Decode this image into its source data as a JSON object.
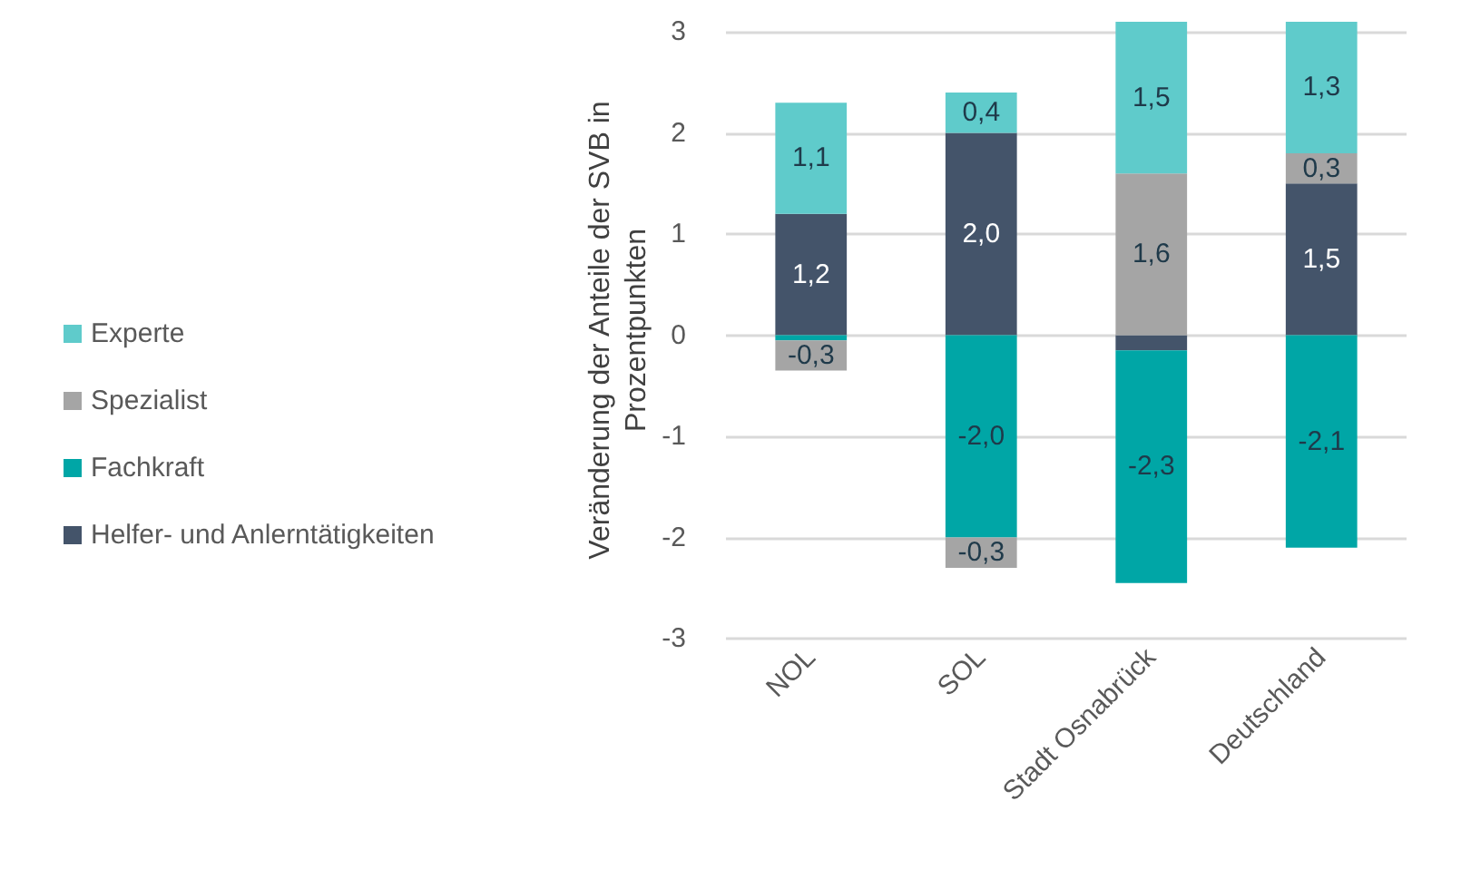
{
  "chart_data": {
    "type": "bar",
    "stacked": true,
    "ylabel": "Veränderung der Anteile der SVB in Prozentpunkten",
    "categories": [
      "NOL",
      "SOL",
      "Stadt Osnabrück",
      "Deutschland"
    ],
    "series": [
      {
        "name": "Helfer- und Anlerntätigkeiten",
        "color": "#44546a",
        "values": [
          1.2,
          2.0,
          -0.15,
          1.5
        ],
        "value_labels": [
          "1,2",
          "2,0",
          null,
          "1,5"
        ]
      },
      {
        "name": "Fachkraft",
        "color": "#00a6a6",
        "values": [
          -0.05,
          -2.0,
          -2.3,
          -2.1
        ],
        "value_labels": [
          null,
          "-2,0",
          "-2,3",
          "-2,1"
        ]
      },
      {
        "name": "Spezialist",
        "color": "#a5a5a5",
        "values": [
          -0.3,
          -0.3,
          1.6,
          0.3
        ],
        "value_labels": [
          "-0,3",
          "-0,3",
          "1,6",
          "0,3"
        ]
      },
      {
        "name": "Experte",
        "color": "#5fcbcb",
        "values": [
          1.1,
          0.4,
          1.5,
          1.3
        ],
        "value_labels": [
          "1,1",
          "0,4",
          "1,5",
          "1,3"
        ]
      }
    ],
    "ylim": [
      -3,
      3.1
    ],
    "yticks": [
      -3,
      -2,
      -1,
      0,
      1,
      2,
      3
    ],
    "grid": "y",
    "legend": "left"
  }
}
